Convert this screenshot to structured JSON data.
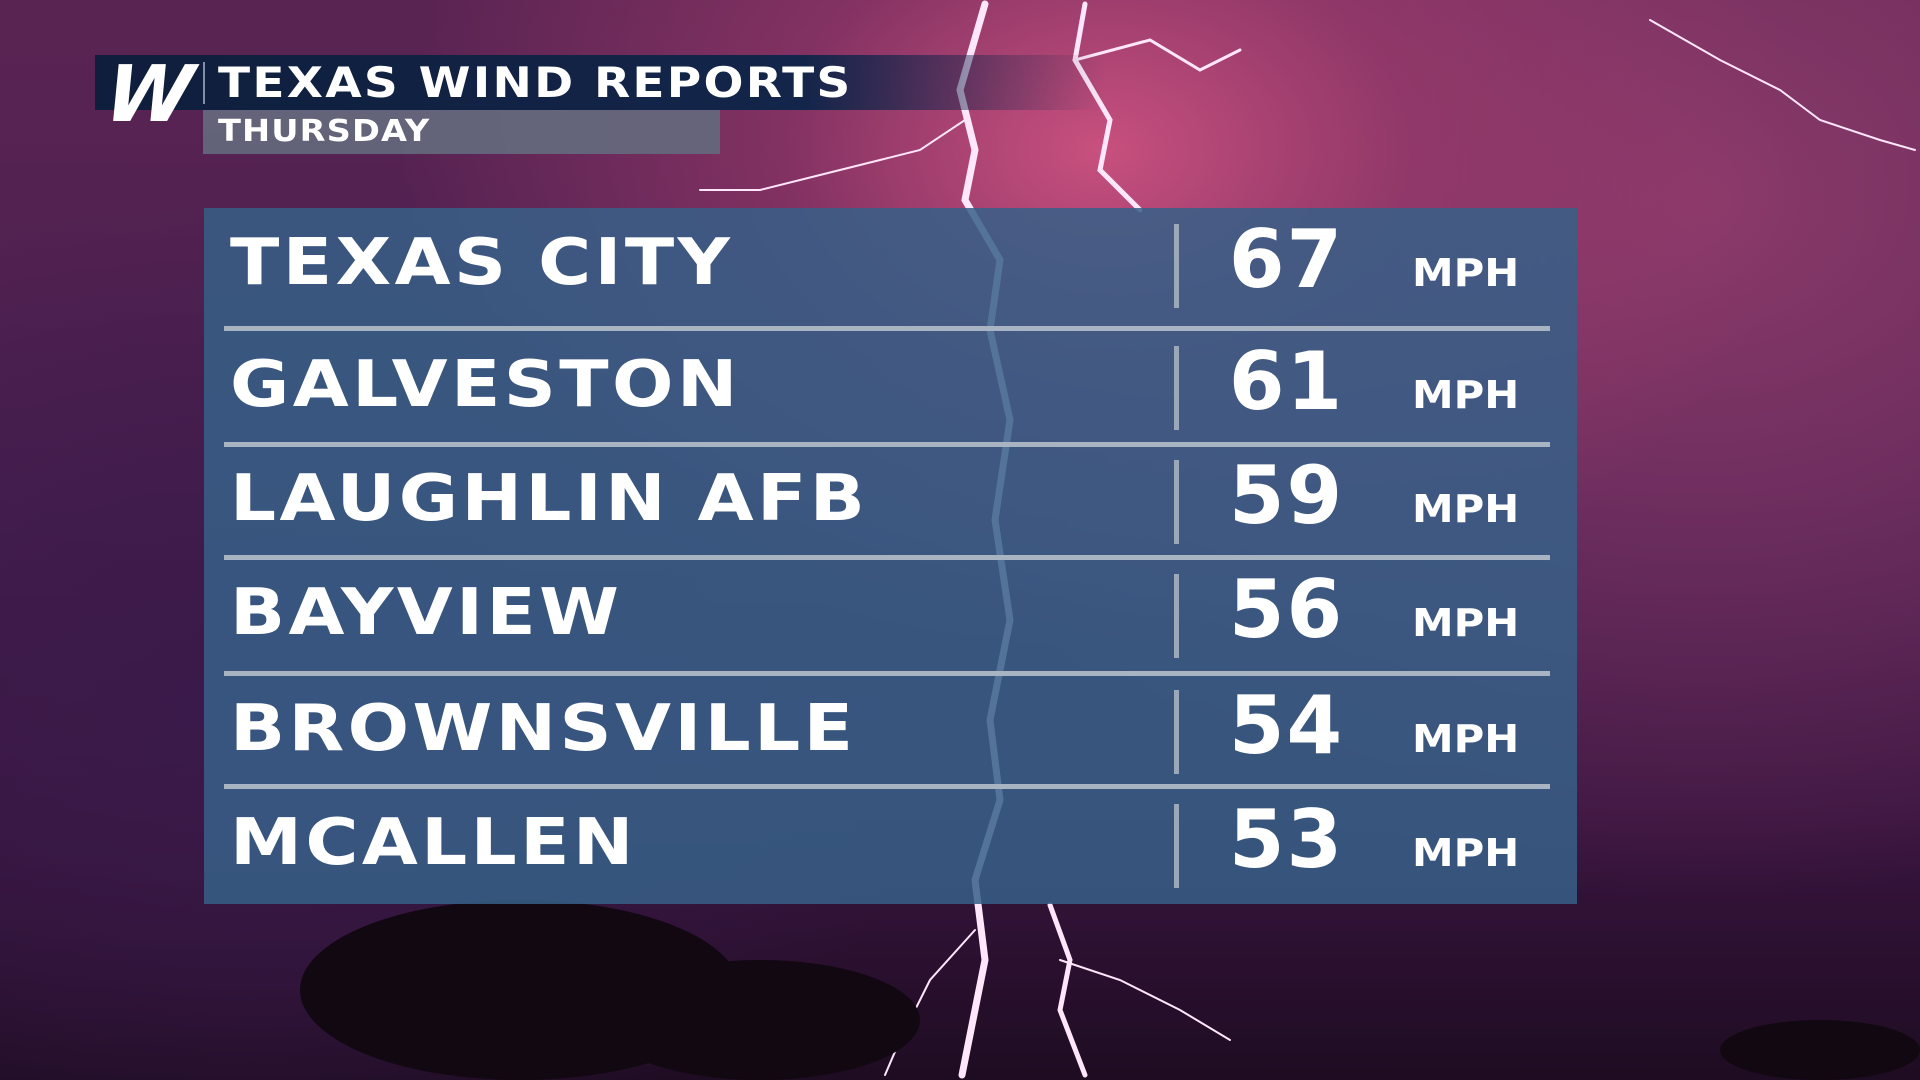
{
  "header": {
    "logo": "W",
    "title": "TEXAS WIND REPORTS",
    "subtitle": "THURSDAY"
  },
  "reports": [
    {
      "location": "TEXAS CITY",
      "speed": "67",
      "unit": "MPH"
    },
    {
      "location": "GALVESTON",
      "speed": "61",
      "unit": "MPH"
    },
    {
      "location": "LAUGHLIN AFB",
      "speed": "59",
      "unit": "MPH"
    },
    {
      "location": "BAYVIEW",
      "speed": "56",
      "unit": "MPH"
    },
    {
      "location": "BROWNSVILLE",
      "speed": "54",
      "unit": "MPH"
    },
    {
      "location": "MCALLEN",
      "speed": "53",
      "unit": "MPH"
    }
  ],
  "colors": {
    "panel": "#375f87",
    "title_bar": "#0f1e3c",
    "subtitle_box": "#64697d",
    "background": "#5a2452"
  }
}
